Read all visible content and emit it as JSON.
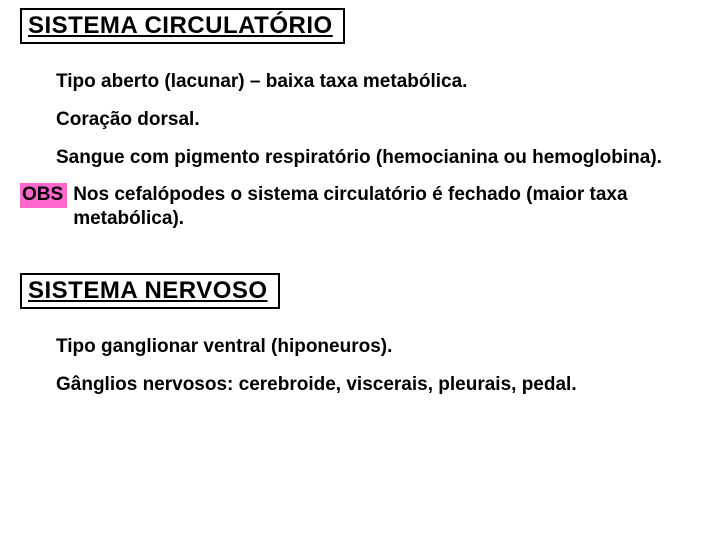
{
  "slide": {
    "background_color": "#ffffff",
    "text_color": "#000000",
    "heading_border_color": "#000000",
    "obs_bg_color": "#ff66cc",
    "font_family": "Arial",
    "heading_fontsize": 24,
    "body_fontsize": 19,
    "sections": {
      "circulatory": {
        "title": "SISTEMA CIRCULATÓRIO",
        "bullets": [
          "Tipo aberto (lacunar) – baixa taxa metabólica.",
          "Coração dorsal.",
          "Sangue com pigmento respiratório (hemocianina ou hemoglobina)."
        ],
        "obs_label": "OBS",
        "obs_text": "Nos cefalópodes o sistema circulatório é fechado (maior taxa metabólica)."
      },
      "nervous": {
        "title": "SISTEMA NERVOSO",
        "bullets": [
          "Tipo ganglionar ventral (hiponeuros).",
          "Gânglios nervosos: cerebroide, viscerais, pleurais, pedal."
        ]
      }
    }
  }
}
